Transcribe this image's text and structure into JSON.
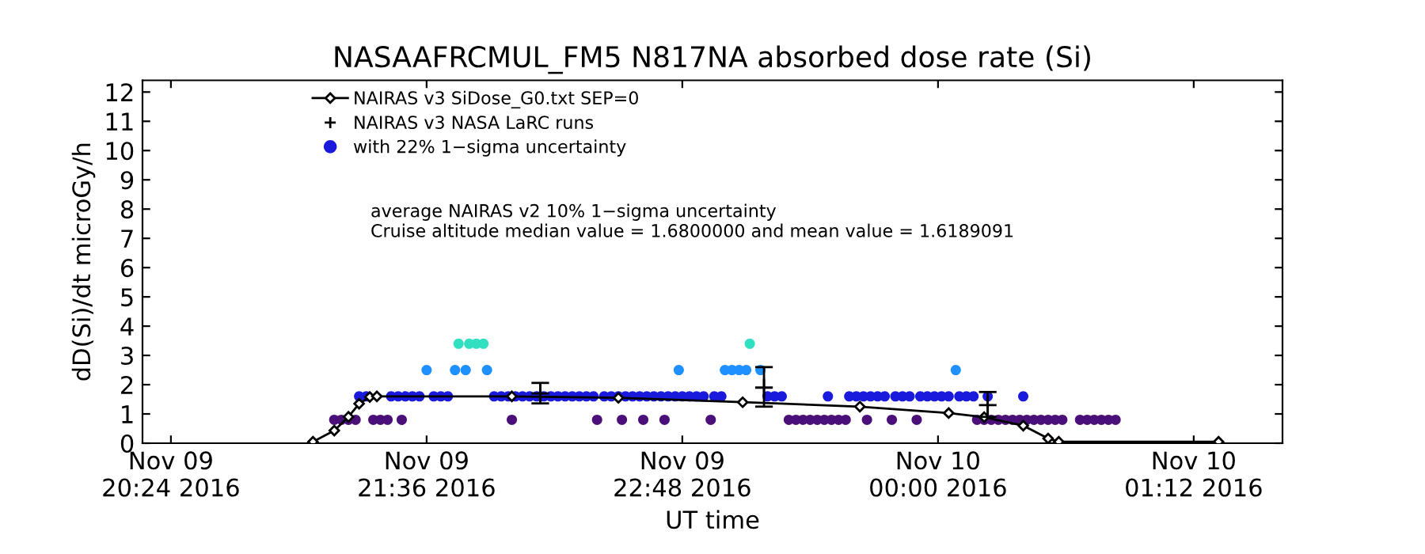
{
  "chart_data": {
    "type": "scatter",
    "title": "NASAAFRCMUL_FM5 N817NA absorbed dose rate (Si)",
    "xlabel": "UT time",
    "ylabel": "dD(Si)/dt microGy/h",
    "xlim": [
      "2016-11-09T20:16",
      "2016-11-10T01:37"
    ],
    "xticks": [
      {
        "value": "2016-11-09T20:24",
        "label": "Nov 09\n20:24 2016"
      },
      {
        "value": "2016-11-09T21:36",
        "label": "Nov 09\n21:36 2016"
      },
      {
        "value": "2016-11-09T22:48",
        "label": "Nov 09\n22:48 2016"
      },
      {
        "value": "2016-11-10T00:00",
        "label": "Nov 10\n00:00 2016"
      },
      {
        "value": "2016-11-10T01:12",
        "label": "Nov 10\n01:12 2016"
      }
    ],
    "ylim": [
      0,
      12.4
    ],
    "yticks": [
      0,
      1,
      2,
      3,
      4,
      5,
      6,
      7,
      8,
      9,
      10,
      11,
      12
    ],
    "grid": false,
    "legend": "top left",
    "annotations": [
      "average NAIRAS v2 10% 1−sigma uncertainty",
      "Cruise altitude median value = 1.6800000 and mean value = 1.6189091"
    ],
    "series": [
      {
        "name": "NAIRAS v3 SiDose_G0.txt SEP=0",
        "type": "line",
        "marker": "diamond",
        "color": "#000000",
        "x": [
          "2016-11-09T21:04",
          "2016-11-09T21:10",
          "2016-11-09T21:14",
          "2016-11-09T21:17",
          "2016-11-09T21:20",
          "2016-11-09T21:22",
          "2016-11-09T22:00",
          "2016-11-09T22:30",
          "2016-11-09T23:05",
          "2016-11-09T23:38",
          "2016-11-10T00:03",
          "2016-11-10T00:13",
          "2016-11-10T00:24",
          "2016-11-10T00:31",
          "2016-11-10T00:34",
          "2016-11-10T01:19"
        ],
        "values": [
          0.05,
          0.43,
          0.9,
          1.35,
          1.58,
          1.6,
          1.6,
          1.55,
          1.4,
          1.25,
          1.03,
          0.89,
          0.6,
          0.16,
          0.05,
          0.05
        ]
      },
      {
        "name": "NAIRAS v3 NASA LaRC runs",
        "type": "scatter",
        "marker": "cross",
        "color": "#000000",
        "x": [
          "2016-11-09T22:08",
          "2016-11-09T23:11",
          "2016-11-10T00:14"
        ],
        "values": [
          1.7,
          1.9,
          1.3
        ],
        "errors": [
          [
            1.36,
            2.06
          ],
          [
            1.25,
            2.6
          ],
          [
            0.9,
            1.75
          ]
        ]
      },
      {
        "name": "with 22% 1−sigma uncertainty",
        "type": "scatter",
        "marker": "circle",
        "color": "#1a1adc",
        "x": [
          "2016-11-09T21:10",
          "2016-11-09T21:12",
          "2016-11-09T21:14",
          "2016-11-09T21:16",
          "2016-11-09T21:17",
          "2016-11-09T21:19",
          "2016-11-09T21:21",
          "2016-11-09T21:23",
          "2016-11-09T21:25",
          "2016-11-09T21:26",
          "2016-11-09T21:28",
          "2016-11-09T21:29",
          "2016-11-09T21:30",
          "2016-11-09T21:32",
          "2016-11-09T21:34",
          "2016-11-09T21:36",
          "2016-11-09T21:38",
          "2016-11-09T21:40",
          "2016-11-09T21:42",
          "2016-11-09T21:44",
          "2016-11-09T21:45",
          "2016-11-09T21:47",
          "2016-11-09T21:48",
          "2016-11-09T21:50",
          "2016-11-09T21:52",
          "2016-11-09T21:53",
          "2016-11-09T21:55",
          "2016-11-09T21:57",
          "2016-11-09T21:59",
          "2016-11-09T22:00",
          "2016-11-09T22:01",
          "2016-11-09T22:03",
          "2016-11-09T22:05",
          "2016-11-09T22:07",
          "2016-11-09T22:09",
          "2016-11-09T22:11",
          "2016-11-09T22:13",
          "2016-11-09T22:15",
          "2016-11-09T22:17",
          "2016-11-09T22:19",
          "2016-11-09T22:21",
          "2016-11-09T22:23",
          "2016-11-09T22:24",
          "2016-11-09T22:26",
          "2016-11-09T22:28",
          "2016-11-09T22:30",
          "2016-11-09T22:31",
          "2016-11-09T22:32",
          "2016-11-09T22:34",
          "2016-11-09T22:36",
          "2016-11-09T22:37",
          "2016-11-09T22:38",
          "2016-11-09T22:40",
          "2016-11-09T22:42",
          "2016-11-09T22:43",
          "2016-11-09T22:44",
          "2016-11-09T22:46",
          "2016-11-09T22:47",
          "2016-11-09T22:48",
          "2016-11-09T22:50",
          "2016-11-09T22:52",
          "2016-11-09T22:54",
          "2016-11-09T22:56",
          "2016-11-09T22:57",
          "2016-11-09T22:59",
          "2016-11-09T23:00",
          "2016-11-09T23:02",
          "2016-11-09T23:04",
          "2016-11-09T23:06",
          "2016-11-09T23:07",
          "2016-11-09T23:10",
          "2016-11-09T23:12",
          "2016-11-09T23:14",
          "2016-11-09T23:16",
          "2016-11-09T23:18",
          "2016-11-09T23:20",
          "2016-11-09T23:22",
          "2016-11-09T23:24",
          "2016-11-09T23:26",
          "2016-11-09T23:28",
          "2016-11-09T23:29",
          "2016-11-09T23:30",
          "2016-11-09T23:32",
          "2016-11-09T23:34",
          "2016-11-09T23:35",
          "2016-11-09T23:37",
          "2016-11-09T23:39",
          "2016-11-09T23:40",
          "2016-11-09T23:41",
          "2016-11-09T23:43",
          "2016-11-09T23:45",
          "2016-11-09T23:47",
          "2016-11-09T23:48",
          "2016-11-09T23:50",
          "2016-11-09T23:52",
          "2016-11-09T23:54",
          "2016-11-09T23:55",
          "2016-11-09T23:57",
          "2016-11-09T23:59",
          "2016-11-10T00:01",
          "2016-11-10T00:03",
          "2016-11-10T00:05",
          "2016-11-10T00:06",
          "2016-11-10T00:08",
          "2016-11-10T00:10",
          "2016-11-10T00:11",
          "2016-11-10T00:13",
          "2016-11-10T00:14",
          "2016-11-10T00:15",
          "2016-11-10T00:17",
          "2016-11-10T00:19",
          "2016-11-10T00:21",
          "2016-11-10T00:23",
          "2016-11-10T00:24",
          "2016-11-10T00:25",
          "2016-11-10T00:27",
          "2016-11-10T00:29",
          "2016-11-10T00:31",
          "2016-11-10T00:33",
          "2016-11-10T00:35",
          "2016-11-10T00:40",
          "2016-11-10T00:42",
          "2016-11-10T00:44",
          "2016-11-10T00:46",
          "2016-11-10T00:48",
          "2016-11-10T00:50"
        ],
        "values": [
          0.8,
          0.8,
          0.8,
          0.8,
          1.6,
          1.6,
          0.8,
          0.8,
          0.8,
          1.6,
          1.6,
          0.8,
          1.6,
          1.6,
          1.6,
          2.5,
          1.6,
          1.6,
          1.6,
          2.5,
          3.4,
          2.5,
          3.4,
          3.4,
          3.4,
          2.5,
          1.6,
          1.6,
          1.6,
          0.8,
          1.6,
          1.6,
          1.6,
          1.6,
          1.6,
          1.6,
          1.6,
          1.6,
          1.6,
          1.6,
          1.6,
          1.6,
          0.8,
          1.6,
          1.6,
          1.6,
          0.8,
          1.6,
          1.6,
          1.6,
          0.8,
          1.6,
          1.6,
          1.6,
          0.8,
          1.6,
          1.6,
          2.5,
          1.6,
          1.6,
          1.6,
          1.6,
          0.8,
          1.6,
          1.6,
          2.5,
          2.5,
          2.5,
          2.5,
          3.4,
          2.5,
          1.6,
          1.6,
          1.6,
          0.8,
          0.8,
          0.8,
          0.8,
          0.8,
          0.8,
          1.6,
          0.8,
          0.8,
          0.8,
          1.6,
          1.6,
          1.6,
          0.8,
          1.6,
          1.6,
          1.6,
          0.8,
          1.6,
          1.6,
          1.6,
          0.8,
          1.6,
          1.6,
          1.6,
          1.6,
          1.6,
          2.5,
          1.6,
          1.6,
          1.6,
          0.8,
          0.8,
          1.6,
          0.8,
          0.8,
          0.8,
          0.8,
          0.8,
          1.6,
          0.8,
          0.8,
          0.8,
          0.8,
          0.8,
          0.8,
          0.8,
          0.8,
          0.8,
          0.8,
          0.8,
          0.8
        ],
        "colors": [
          "#4b0f7a",
          "#4b0f7a",
          "#4b0f7a",
          "#4b0f7a",
          "#1a1adc",
          "#1a1adc",
          "#4b0f7a",
          "#4b0f7a",
          "#4b0f7a",
          "#1a1adc",
          "#1a1adc",
          "#4b0f7a",
          "#1a1adc",
          "#1a1adc",
          "#1a1adc",
          "#1e90ff",
          "#1a1adc",
          "#1a1adc",
          "#1a1adc",
          "#1e90ff",
          "#30e0c0",
          "#1e90ff",
          "#30e0c0",
          "#30e0c0",
          "#30e0c0",
          "#1e90ff",
          "#1a1adc",
          "#1a1adc",
          "#1a1adc",
          "#4b0f7a",
          "#1a1adc",
          "#1a1adc",
          "#1a1adc",
          "#1a1adc",
          "#1a1adc",
          "#1a1adc",
          "#1a1adc",
          "#1a1adc",
          "#1a1adc",
          "#1a1adc",
          "#1a1adc",
          "#1a1adc",
          "#4b0f7a",
          "#1a1adc",
          "#1a1adc",
          "#1a1adc",
          "#4b0f7a",
          "#1a1adc",
          "#1a1adc",
          "#1a1adc",
          "#4b0f7a",
          "#1a1adc",
          "#1a1adc",
          "#1a1adc",
          "#4b0f7a",
          "#1a1adc",
          "#1a1adc",
          "#1e90ff",
          "#1a1adc",
          "#1a1adc",
          "#1a1adc",
          "#1a1adc",
          "#4b0f7a",
          "#1a1adc",
          "#1a1adc",
          "#1e90ff",
          "#1e90ff",
          "#1e90ff",
          "#1e90ff",
          "#30e0c0",
          "#1e90ff",
          "#1a1adc",
          "#1a1adc",
          "#1a1adc",
          "#4b0f7a",
          "#4b0f7a",
          "#4b0f7a",
          "#4b0f7a",
          "#4b0f7a",
          "#4b0f7a",
          "#1a1adc",
          "#4b0f7a",
          "#4b0f7a",
          "#4b0f7a",
          "#1a1adc",
          "#1a1adc",
          "#1a1adc",
          "#4b0f7a",
          "#1a1adc",
          "#1a1adc",
          "#1a1adc",
          "#4b0f7a",
          "#1a1adc",
          "#1a1adc",
          "#1a1adc",
          "#4b0f7a",
          "#1a1adc",
          "#1a1adc",
          "#1a1adc",
          "#1a1adc",
          "#1a1adc",
          "#1e90ff",
          "#1a1adc",
          "#1a1adc",
          "#1a1adc",
          "#4b0f7a",
          "#4b0f7a",
          "#1a1adc",
          "#4b0f7a",
          "#4b0f7a",
          "#4b0f7a",
          "#4b0f7a",
          "#4b0f7a",
          "#1a1adc",
          "#4b0f7a",
          "#4b0f7a",
          "#4b0f7a",
          "#4b0f7a",
          "#4b0f7a",
          "#4b0f7a",
          "#4b0f7a",
          "#4b0f7a",
          "#4b0f7a",
          "#4b0f7a",
          "#4b0f7a",
          "#4b0f7a"
        ]
      }
    ]
  }
}
